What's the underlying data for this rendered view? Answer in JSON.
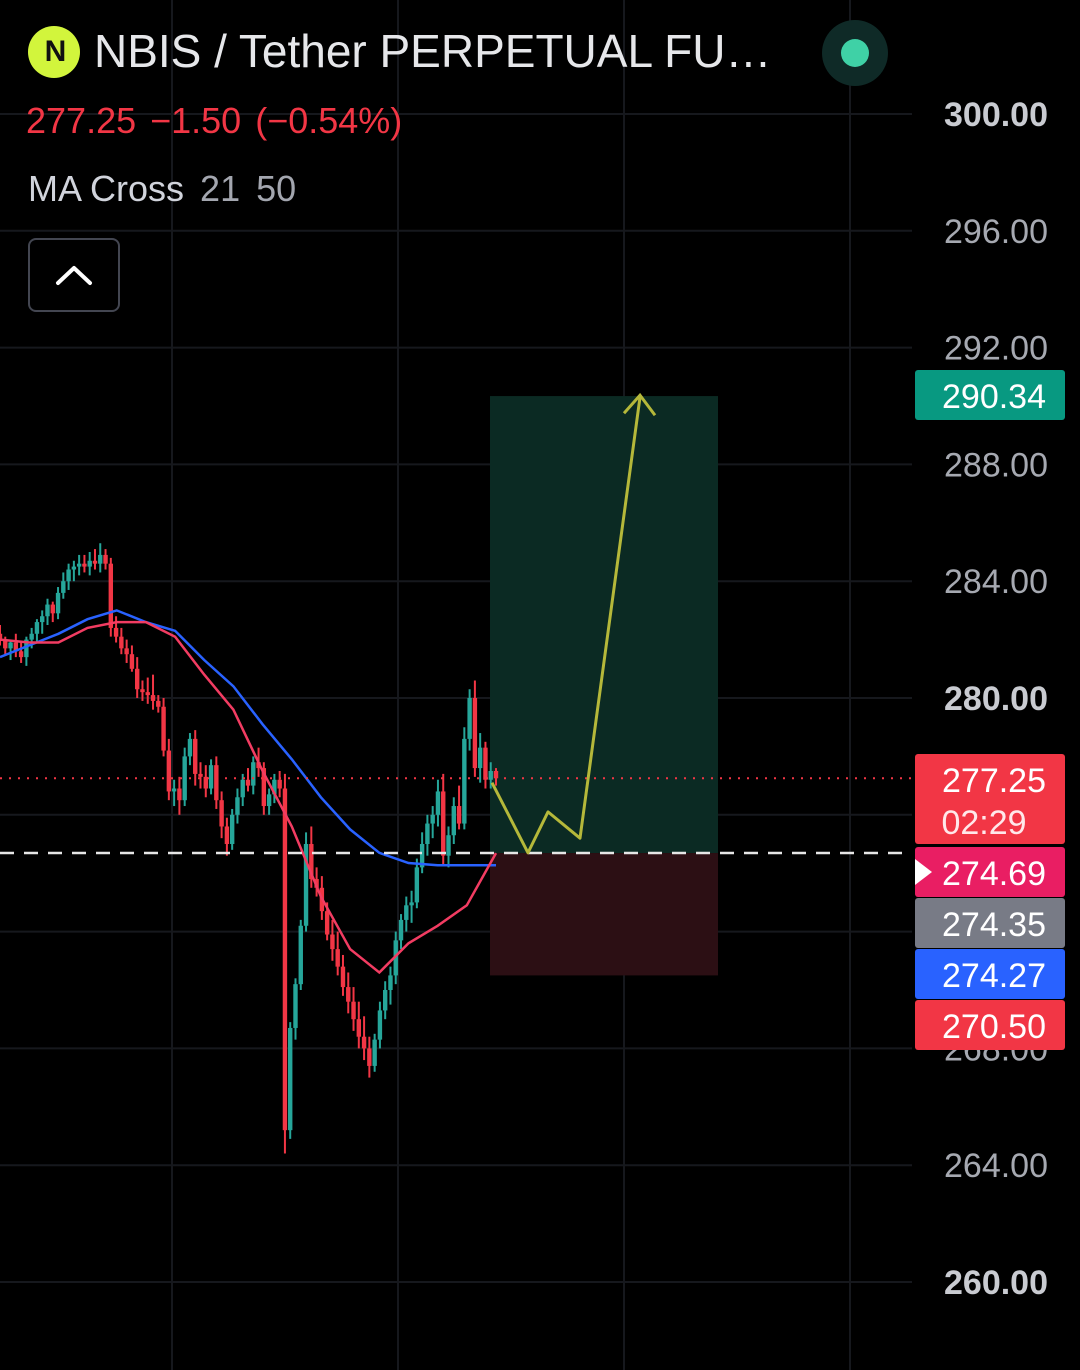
{
  "header": {
    "logo_text": "N",
    "title": "NBIS / Tether PERPETUAL FUT…",
    "last_price": "277.25",
    "change": "−1.50",
    "change_pct": "(−0.54%)",
    "indicator_name": "MA Cross",
    "indicator_fast": "21",
    "indicator_slow": "50",
    "status_color": "#3fd1a6"
  },
  "colors": {
    "up": "#26a69a",
    "down": "#f23645",
    "ma_fast": "#f23c62",
    "ma_slow": "#2962ff",
    "target_zone": "#0b2a23",
    "stop_zone": "#2c0f14",
    "projection": "#b5b83a"
  },
  "chart_data": {
    "type": "candlestick",
    "title": "NBIS / Tether PERPETUAL FUT…",
    "ylim": [
      258,
      302
    ],
    "y_ticks": [
      "300.00",
      "296.00",
      "292.00",
      "288.00",
      "284.00",
      "280.00",
      "268.00",
      "264.00",
      "260.00"
    ],
    "y_tick_values": [
      300,
      296,
      292,
      288,
      284,
      280,
      268,
      264,
      260
    ],
    "grid": true,
    "price_labels": [
      {
        "value": 290.34,
        "text": "290.34",
        "sub": "",
        "color": "#089981"
      },
      {
        "value": 277.25,
        "text": "277.25",
        "sub": "02:29",
        "color": "#f23645"
      },
      {
        "value": 274.69,
        "text": "274.69",
        "sub": "",
        "color": "#e91e63"
      },
      {
        "value": 274.35,
        "text": "274.35",
        "sub": "",
        "color": "#787b86"
      },
      {
        "value": 274.27,
        "text": "274.27",
        "sub": "",
        "color": "#2962ff"
      },
      {
        "value": 270.5,
        "text": "270.50",
        "sub": "",
        "color": "#f23645"
      }
    ],
    "last_price_line": 277.25,
    "entry_line": 274.69,
    "position": {
      "entry": 274.69,
      "target": 290.34,
      "stop": 270.5
    },
    "projection_path": [
      [
        0,
        277.1
      ],
      [
        1,
        274.7
      ],
      [
        2,
        276.1
      ],
      [
        3,
        275.2
      ],
      [
        4,
        290.3
      ]
    ],
    "candles": [
      [
        282.2,
        282.5,
        281.8,
        282.0
      ],
      [
        282.0,
        282.1,
        281.5,
        281.7
      ],
      [
        281.7,
        282.0,
        281.3,
        281.9
      ],
      [
        281.9,
        282.2,
        281.4,
        281.6
      ],
      [
        281.6,
        281.9,
        281.2,
        281.4
      ],
      [
        281.4,
        282.1,
        281.1,
        282.0
      ],
      [
        282.0,
        282.4,
        281.7,
        282.2
      ],
      [
        282.2,
        282.7,
        281.9,
        282.6
      ],
      [
        282.6,
        283.0,
        282.2,
        282.8
      ],
      [
        282.8,
        283.4,
        282.5,
        283.2
      ],
      [
        283.2,
        283.3,
        282.6,
        282.9
      ],
      [
        282.9,
        283.8,
        282.7,
        283.6
      ],
      [
        283.6,
        284.3,
        283.4,
        284.0
      ],
      [
        284.0,
        284.6,
        283.7,
        284.4
      ],
      [
        284.4,
        284.7,
        284.0,
        284.5
      ],
      [
        284.5,
        284.9,
        284.2,
        284.6
      ],
      [
        284.6,
        284.9,
        284.3,
        284.5
      ],
      [
        284.5,
        285.0,
        284.2,
        284.7
      ],
      [
        284.7,
        285.1,
        284.4,
        284.6
      ],
      [
        284.6,
        285.3,
        284.3,
        284.9
      ],
      [
        284.9,
        285.1,
        284.4,
        284.6
      ],
      [
        284.6,
        284.8,
        282.1,
        282.4
      ],
      [
        282.4,
        282.8,
        281.9,
        282.1
      ],
      [
        282.1,
        282.4,
        281.5,
        281.7
      ],
      [
        281.7,
        282.0,
        281.2,
        281.5
      ],
      [
        281.5,
        281.8,
        280.9,
        281.0
      ],
      [
        281.0,
        281.4,
        280.0,
        280.3
      ],
      [
        280.3,
        280.6,
        279.9,
        280.2
      ],
      [
        280.2,
        280.7,
        279.8,
        280.1
      ],
      [
        280.1,
        280.8,
        279.6,
        279.9
      ],
      [
        279.9,
        280.1,
        279.5,
        279.7
      ],
      [
        279.7,
        280.0,
        278.0,
        278.2
      ],
      [
        278.2,
        278.6,
        276.5,
        276.8
      ],
      [
        276.8,
        277.2,
        276.3,
        276.9
      ],
      [
        276.9,
        277.3,
        276.0,
        276.5
      ],
      [
        276.5,
        278.3,
        276.3,
        278.0
      ],
      [
        278.0,
        278.8,
        277.7,
        278.6
      ],
      [
        278.6,
        278.9,
        277.0,
        277.4
      ],
      [
        277.4,
        277.8,
        276.9,
        277.3
      ],
      [
        277.3,
        277.7,
        276.6,
        276.9
      ],
      [
        276.9,
        277.9,
        276.7,
        277.7
      ],
      [
        277.7,
        278.0,
        276.2,
        276.5
      ],
      [
        276.5,
        276.8,
        275.2,
        275.6
      ],
      [
        275.6,
        275.9,
        274.6,
        275.0
      ],
      [
        275.0,
        276.2,
        274.8,
        276.0
      ],
      [
        276.0,
        276.9,
        275.7,
        276.6
      ],
      [
        276.6,
        277.4,
        276.3,
        277.2
      ],
      [
        277.2,
        277.6,
        276.8,
        277.0
      ],
      [
        277.0,
        278.0,
        276.7,
        277.8
      ],
      [
        277.8,
        278.3,
        277.3,
        277.6
      ],
      [
        277.6,
        277.8,
        276.0,
        276.3
      ],
      [
        276.3,
        276.9,
        276.0,
        276.7
      ],
      [
        276.7,
        277.4,
        276.4,
        277.2
      ],
      [
        277.2,
        277.5,
        276.6,
        276.9
      ],
      [
        276.9,
        277.4,
        264.4,
        265.2
      ],
      [
        265.2,
        268.9,
        264.9,
        268.7
      ],
      [
        268.7,
        270.4,
        268.3,
        270.2
      ],
      [
        270.2,
        272.4,
        270.0,
        272.2
      ],
      [
        272.2,
        275.4,
        272.0,
        275.0
      ],
      [
        275.0,
        275.6,
        273.5,
        273.8
      ],
      [
        273.8,
        274.2,
        273.2,
        273.5
      ],
      [
        273.5,
        273.9,
        272.4,
        272.7
      ],
      [
        272.7,
        273.0,
        271.7,
        271.9
      ],
      [
        271.9,
        272.4,
        271.0,
        271.4
      ],
      [
        271.4,
        272.0,
        270.5,
        270.8
      ],
      [
        270.8,
        271.2,
        269.8,
        270.1
      ],
      [
        270.1,
        270.6,
        269.2,
        269.6
      ],
      [
        269.6,
        270.1,
        268.6,
        269.0
      ],
      [
        269.0,
        269.6,
        268.0,
        268.4
      ],
      [
        268.4,
        269.1,
        267.6,
        268.0
      ],
      [
        268.0,
        268.4,
        267.0,
        267.4
      ],
      [
        267.4,
        268.5,
        267.2,
        268.3
      ],
      [
        268.3,
        269.6,
        268.0,
        269.3
      ],
      [
        269.3,
        270.3,
        269.0,
        270.0
      ],
      [
        270.0,
        270.8,
        269.5,
        270.5
      ],
      [
        270.5,
        272.0,
        270.2,
        271.7
      ],
      [
        271.7,
        272.6,
        271.4,
        272.4
      ],
      [
        272.4,
        273.2,
        272.0,
        272.9
      ],
      [
        272.9,
        273.4,
        272.3,
        273.0
      ],
      [
        273.0,
        274.5,
        272.8,
        274.2
      ],
      [
        274.2,
        275.4,
        274.0,
        275.0
      ],
      [
        275.0,
        276.0,
        274.6,
        275.7
      ],
      [
        275.7,
        276.3,
        275.2,
        276.0
      ],
      [
        276.0,
        277.2,
        275.6,
        276.8
      ],
      [
        276.8,
        277.4,
        274.3,
        274.6
      ],
      [
        274.6,
        275.6,
        274.2,
        275.3
      ],
      [
        275.3,
        276.6,
        275.0,
        276.3
      ],
      [
        276.3,
        277.0,
        275.5,
        275.7
      ],
      [
        275.7,
        279.0,
        275.5,
        278.6
      ],
      [
        278.6,
        280.3,
        278.2,
        280.0
      ],
      [
        280.0,
        280.6,
        277.3,
        277.6
      ],
      [
        277.6,
        278.8,
        277.1,
        278.3
      ],
      [
        278.3,
        278.5,
        276.9,
        277.2
      ],
      [
        277.2,
        277.8,
        276.9,
        277.5
      ],
      [
        277.5,
        277.6,
        277.0,
        277.25
      ]
    ],
    "ma_fast": [
      282.0,
      281.9,
      281.9,
      282.4,
      282.6,
      282.6,
      282.1,
      280.8,
      279.6,
      277.5,
      275.6,
      273.2,
      271.4,
      270.6,
      271.6,
      272.2,
      272.9,
      274.69
    ],
    "ma_slow": [
      281.4,
      281.8,
      282.2,
      282.7,
      283.0,
      282.6,
      282.3,
      281.3,
      280.4,
      279.1,
      277.9,
      276.6,
      275.5,
      274.7,
      274.35,
      274.27,
      274.27,
      274.27
    ]
  }
}
